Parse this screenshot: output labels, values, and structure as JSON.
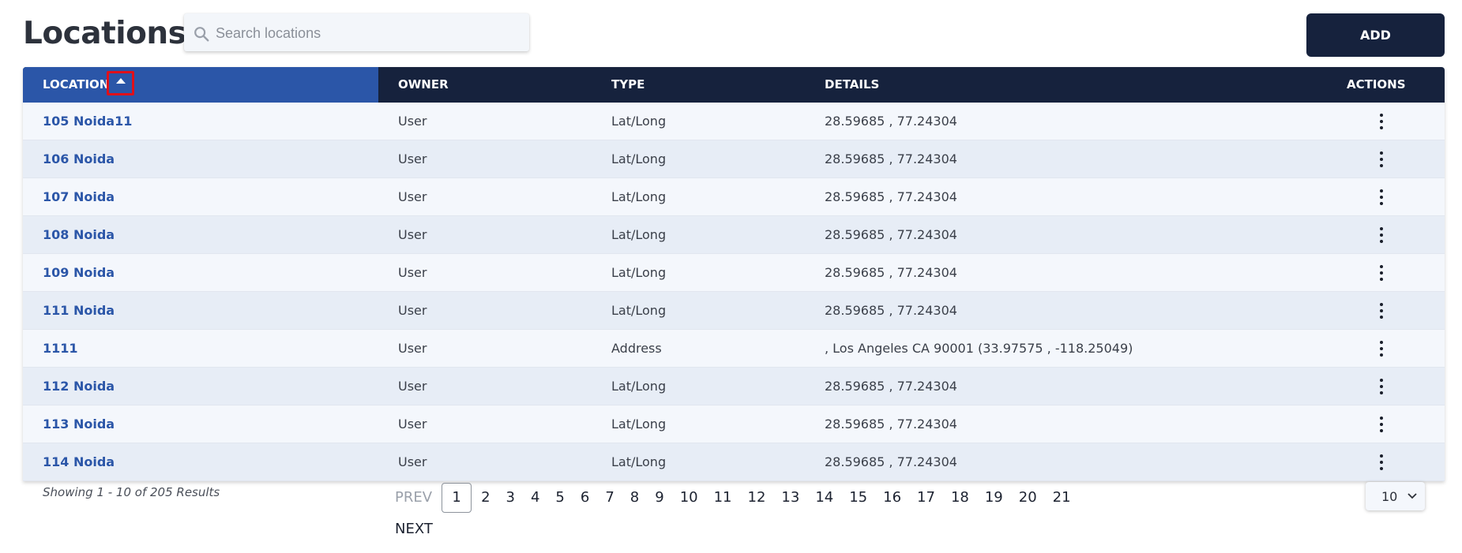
{
  "header": {
    "title": "Locations",
    "add_label": "ADD"
  },
  "search": {
    "placeholder": "Search locations",
    "value": ""
  },
  "table": {
    "columns": [
      "LOCATION",
      "OWNER",
      "TYPE",
      "DETAILS",
      "ACTIONS"
    ],
    "sort": {
      "column": "LOCATION",
      "direction": "ascending"
    },
    "rows": [
      {
        "location": "105 Noida11",
        "owner": "User",
        "type": "Lat/Long",
        "details": "28.59685 , 77.24304"
      },
      {
        "location": "106 Noida",
        "owner": "User",
        "type": "Lat/Long",
        "details": "28.59685 , 77.24304"
      },
      {
        "location": "107 Noida",
        "owner": "User",
        "type": "Lat/Long",
        "details": "28.59685 , 77.24304"
      },
      {
        "location": "108 Noida",
        "owner": "User",
        "type": "Lat/Long",
        "details": "28.59685 , 77.24304"
      },
      {
        "location": "109 Noida",
        "owner": "User",
        "type": "Lat/Long",
        "details": "28.59685 , 77.24304"
      },
      {
        "location": "111 Noida",
        "owner": "User",
        "type": "Lat/Long",
        "details": "28.59685 , 77.24304"
      },
      {
        "location": "1111",
        "owner": "User",
        "type": "Address",
        "details": ", Los Angeles CA 90001 (33.97575 , -118.25049)"
      },
      {
        "location": "112 Noida",
        "owner": "User",
        "type": "Lat/Long",
        "details": "28.59685 , 77.24304"
      },
      {
        "location": "113 Noida",
        "owner": "User",
        "type": "Lat/Long",
        "details": "28.59685 , 77.24304"
      },
      {
        "location": "114 Noida",
        "owner": "User",
        "type": "Lat/Long",
        "details": "28.59685 , 77.24304"
      }
    ]
  },
  "footer": {
    "showing": "Showing 1 - 10 of 205 Results",
    "pagination": {
      "prev": "PREV",
      "next": "NEXT",
      "pages": [
        "1",
        "2",
        "3",
        "4",
        "5",
        "6",
        "7",
        "8",
        "9",
        "10",
        "11",
        "12",
        "13",
        "14",
        "15",
        "16",
        "17",
        "18",
        "19",
        "20",
        "21"
      ],
      "current": "1"
    },
    "per_page": "10"
  },
  "icons": {
    "search": "search-icon",
    "sort": "sort-ascending-icon",
    "row_actions": "more-vertical-icon",
    "select": "chevron-down-icon"
  },
  "colors": {
    "header_bg": "#16223d",
    "sorted_header_bg": "#2b56a8",
    "link": "#2b56a8",
    "add_button": "#16223d",
    "row_alt": "#e7edf6",
    "highlight": "#e0101a"
  }
}
